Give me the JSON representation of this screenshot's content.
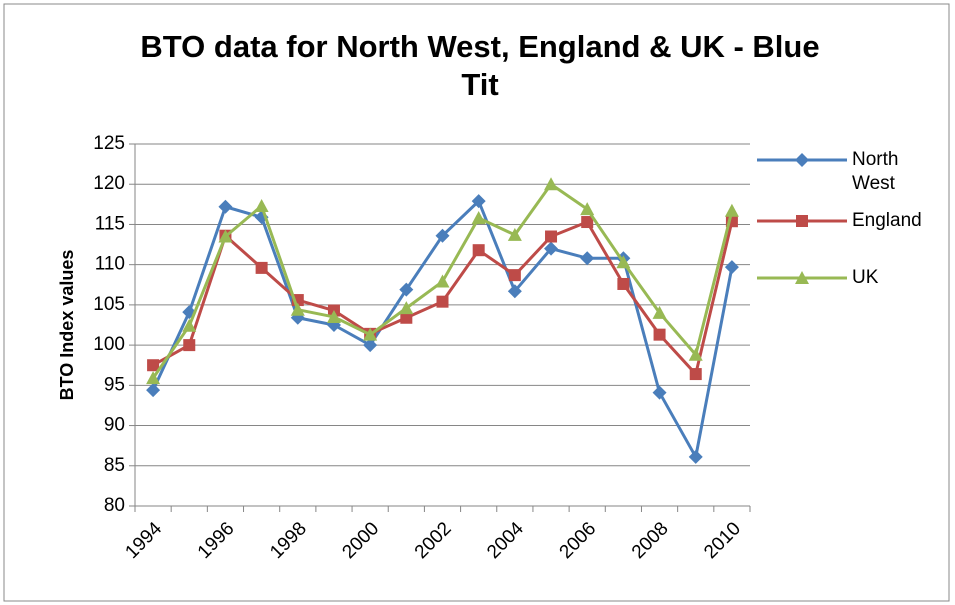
{
  "chart_data": {
    "type": "line",
    "title": "BTO data for North West, England & UK - Blue Tit",
    "y_label": "BTO Index values",
    "categories": [
      "1994",
      null,
      "1996",
      null,
      "1998",
      null,
      "2000",
      null,
      "2002",
      null,
      "2004",
      null,
      "2006",
      null,
      "2008",
      null,
      "2010"
    ],
    "series": [
      {
        "name": "North West",
        "color": "#4a7ebb",
        "marker": "diamond",
        "values": [
          94.4,
          104.1,
          117.2,
          115.9,
          103.4,
          102.5,
          100.0,
          106.9,
          113.6,
          117.9,
          106.7,
          112.0,
          110.8,
          110.8,
          94.1,
          86.1,
          109.7
        ]
      },
      {
        "name": "England",
        "color": "#be4b48",
        "marker": "square",
        "values": [
          97.5,
          100.0,
          113.6,
          109.6,
          105.6,
          104.3,
          101.4,
          103.4,
          105.4,
          111.8,
          108.7,
          113.5,
          115.3,
          107.6,
          101.3,
          96.4,
          115.4
        ]
      },
      {
        "name": "UK",
        "color": "#98b954",
        "marker": "triangle",
        "values": [
          95.9,
          102.4,
          113.5,
          117.3,
          104.4,
          103.5,
          101.3,
          104.6,
          107.9,
          115.8,
          113.7,
          120.0,
          116.9,
          110.3,
          104.0,
          98.8,
          116.7
        ]
      }
    ],
    "ylim": [
      80,
      125
    ],
    "yticks": [
      80,
      85,
      90,
      95,
      100,
      105,
      110,
      115,
      120,
      125
    ],
    "grid": true,
    "legend": "right"
  }
}
